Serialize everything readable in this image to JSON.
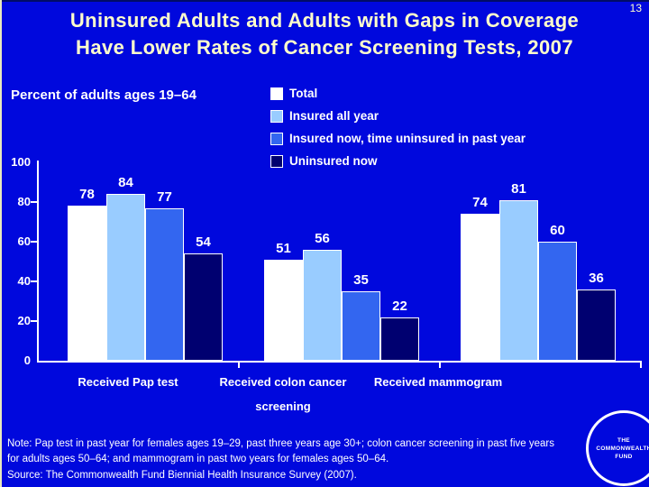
{
  "slide": {
    "number": "13",
    "title_line1": "Uninsured Adults and Adults with Gaps in Coverage",
    "title_line2": "Have Lower Rates of Cancer Screening Tests, 2007",
    "axis_title": "Percent of adults ages 19–64",
    "note_line1": "Note: Pap test in past year for females ages 19–29, past three years age 30+; colon cancer screening in past five years",
    "note_line2": "for adults ages 50–64; and mammogram in past two years for females ages 50–64.",
    "source": "Source: The Commonwealth Fund Biennial Health Insurance Survey (2007).",
    "logo_line1": "THE",
    "logo_line2": "COMMONWEALTH",
    "logo_line3": "FUND"
  },
  "colors": {
    "background": "#0008DD",
    "title_text": "#FFFFCC",
    "body_text": "#FFFFFF",
    "axis": "#FFFFFF",
    "bar_total": "#FFFFFF",
    "bar_insured_all_year": "#99CCFF",
    "bar_insured_now_gap": "#3366F0",
    "bar_uninsured_now": "#000070"
  },
  "chart_data": {
    "type": "bar",
    "title": "Percent of adults ages 19–64",
    "categories": [
      "Received Pap test",
      "Received colon cancer screening",
      "Received mammogram"
    ],
    "series": [
      {
        "name": "Total",
        "color": "#FFFFFF",
        "values": [
          78,
          51,
          74
        ]
      },
      {
        "name": "Insured all year",
        "color": "#99CCFF",
        "values": [
          84,
          56,
          81
        ]
      },
      {
        "name": "Insured now, time uninsured in past year",
        "color": "#3366F0",
        "values": [
          77,
          35,
          60
        ]
      },
      {
        "name": "Uninsured now",
        "color": "#000070",
        "values": [
          54,
          22,
          36
        ]
      }
    ],
    "ylim": [
      0,
      100
    ],
    "yticks": [
      0,
      20,
      40,
      60,
      80,
      100
    ],
    "grid": false,
    "legend_position": "top-right",
    "value_labels": true
  }
}
